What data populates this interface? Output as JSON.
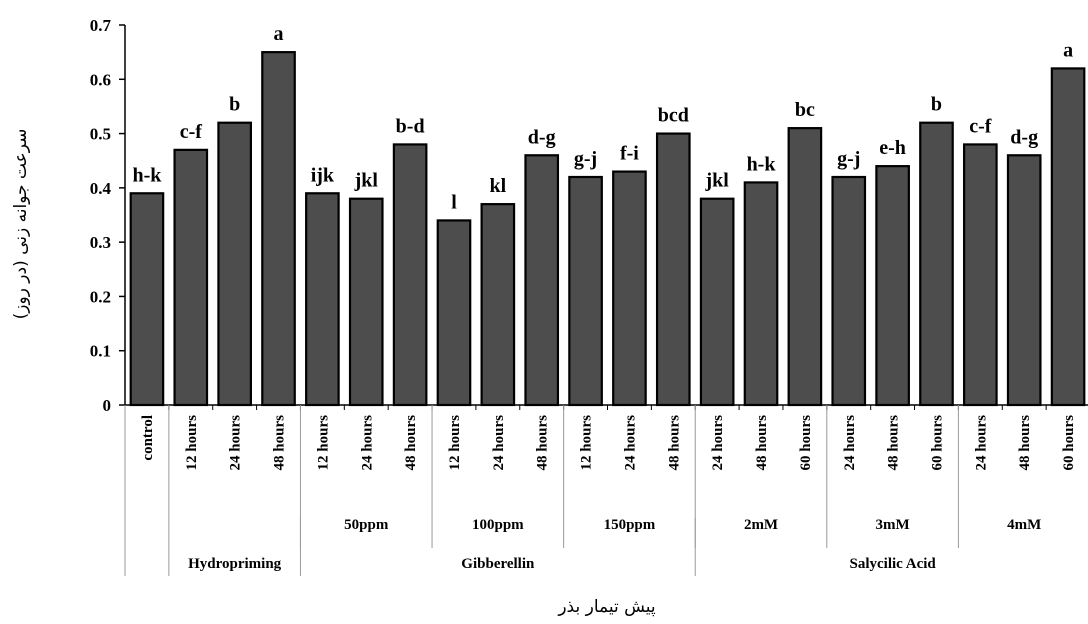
{
  "chart_data": {
    "type": "bar",
    "ylabel": "سرعت جوانه زنی (در روز)",
    "xlabel": "پیش تیمار بذر",
    "ylim": [
      0,
      0.7
    ],
    "yticks": [
      "0",
      "0.1",
      "0.2",
      "0.3",
      "0.4",
      "0.5",
      "0.6",
      "0.7"
    ],
    "grid": false,
    "bar_color": "#4d4d4d",
    "categories": [
      "control",
      "12 hours",
      "24 hours",
      "48 hours",
      "12 hours",
      "24 hours",
      "48 hours",
      "12 hours",
      "24 hours",
      "48 hours",
      "12 hours",
      "24 hours",
      "48 hours",
      "24 hours",
      "48 hours",
      "60 hours",
      "24 hours",
      "48 hours",
      "60 hours",
      "24 hours",
      "48 hours",
      "60 hours"
    ],
    "values": [
      0.39,
      0.47,
      0.52,
      0.65,
      0.39,
      0.38,
      0.48,
      0.34,
      0.37,
      0.46,
      0.42,
      0.43,
      0.5,
      0.38,
      0.41,
      0.51,
      0.42,
      0.44,
      0.52,
      0.48,
      0.46,
      0.62
    ],
    "letters": [
      "h-k",
      "c-f",
      "b",
      "a",
      "ijk",
      "jkl",
      "b-d",
      "l",
      "kl",
      "d-g",
      "g-j",
      "f-i",
      "bcd",
      "jkl",
      "h-k",
      "bc",
      "g-j",
      "e-h",
      "b",
      "c-f",
      "d-g",
      "a"
    ],
    "subgroups": [
      {
        "label": "",
        "start": 1,
        "end": 3
      },
      {
        "label": "50ppm",
        "start": 4,
        "end": 6
      },
      {
        "label": "100ppm",
        "start": 7,
        "end": 9
      },
      {
        "label": "150ppm",
        "start": 10,
        "end": 12
      },
      {
        "label": "2mM",
        "start": 13,
        "end": 15
      },
      {
        "label": "3mM",
        "start": 16,
        "end": 18
      },
      {
        "label": "4mM",
        "start": 19,
        "end": 21
      }
    ],
    "groups": [
      {
        "label": "Hydropriming",
        "start": 1,
        "end": 3
      },
      {
        "label": "Gibberellin",
        "start": 4,
        "end": 12
      },
      {
        "label": "Salycilic Acid",
        "start": 13,
        "end": 21
      }
    ]
  }
}
